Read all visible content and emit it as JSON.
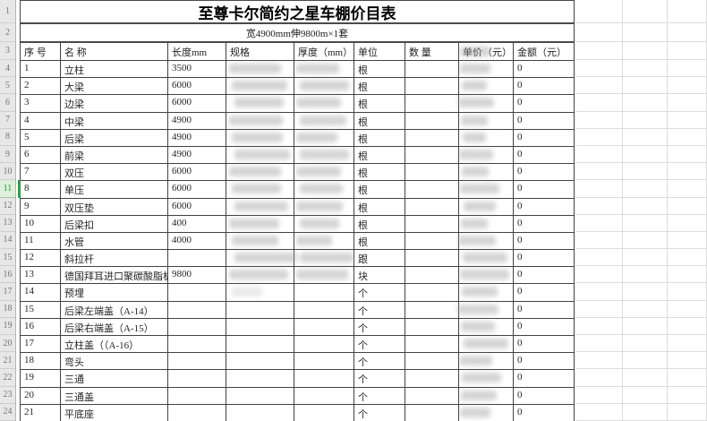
{
  "accent_colors": {
    "selection_green": "#2f9e44",
    "grid_gray": "#dcdcdc",
    "table_border": "#424242"
  },
  "row_headers": {
    "numbers": [
      "1",
      "2",
      "3",
      "4",
      "5",
      "6",
      "7",
      "8",
      "9",
      "10",
      "11",
      "12",
      "13",
      "14",
      "15",
      "16",
      "17",
      "18",
      "19",
      "20",
      "21",
      "22",
      "23",
      "24"
    ],
    "selected": "11"
  },
  "table": {
    "title": "至尊卡尔简约之星车棚价目表",
    "subtitle": "宽4900mm伸9800m×1套",
    "columns": [
      {
        "key": "no",
        "label": "序 号"
      },
      {
        "key": "name",
        "label": "名 称"
      },
      {
        "key": "length",
        "label": "长度mm"
      },
      {
        "key": "spec",
        "label": "规格"
      },
      {
        "key": "thickness",
        "label": "厚度（mm）"
      },
      {
        "key": "unit",
        "label": "单位"
      },
      {
        "key": "qty",
        "label": "数 量"
      },
      {
        "key": "price",
        "label": "单价（元）"
      },
      {
        "key": "amount",
        "label": "金额（元）"
      }
    ],
    "price_header_redacted": true,
    "rows": [
      {
        "no": "1",
        "name": "立柱",
        "length": "3500",
        "spec": "",
        "thickness": "",
        "unit": "根",
        "qty": "",
        "price": "",
        "amount": "0",
        "spec_redacted": true,
        "thickness_redacted": true,
        "price_redacted": true
      },
      {
        "no": "2",
        "name": "大梁",
        "length": "6000",
        "spec": "",
        "thickness": "",
        "unit": "根",
        "qty": "",
        "price": "",
        "amount": "0",
        "spec_redacted": true,
        "thickness_redacted": true,
        "price_redacted": true
      },
      {
        "no": "3",
        "name": "边梁",
        "length": "6000",
        "spec": "",
        "thickness": "",
        "unit": "根",
        "qty": "",
        "price": "",
        "amount": "0",
        "spec_redacted": true,
        "thickness_redacted": true,
        "price_redacted": true
      },
      {
        "no": "4",
        "name": "中梁",
        "length": "4900",
        "spec": "",
        "thickness": "",
        "unit": "根",
        "qty": "",
        "price": "",
        "amount": "0",
        "spec_redacted": true,
        "thickness_redacted": true,
        "price_redacted": true
      },
      {
        "no": "5",
        "name": "后梁",
        "length": "4900",
        "spec": "",
        "thickness": "",
        "unit": "根",
        "qty": "",
        "price": "",
        "amount": "0",
        "spec_redacted": true,
        "thickness_redacted": true,
        "price_redacted": true
      },
      {
        "no": "6",
        "name": "前梁",
        "length": "4900",
        "spec": "",
        "thickness": "",
        "unit": "根",
        "qty": "",
        "price": "",
        "amount": "0",
        "spec_redacted": true,
        "thickness_redacted": true,
        "price_redacted": true
      },
      {
        "no": "7",
        "name": "双压",
        "length": "6000",
        "spec": "",
        "thickness": "",
        "unit": "根",
        "qty": "",
        "price": "",
        "amount": "0",
        "spec_redacted": true,
        "thickness_redacted": true,
        "price_redacted": true
      },
      {
        "no": "8",
        "name": "单压",
        "length": "6000",
        "spec": "",
        "thickness": "",
        "unit": "根",
        "qty": "",
        "price": "",
        "amount": "0",
        "spec_redacted": true,
        "thickness_redacted": true,
        "price_redacted": true
      },
      {
        "no": "9",
        "name": "双压垫",
        "length": "6000",
        "spec": "",
        "thickness": "",
        "unit": "根",
        "qty": "",
        "price": "",
        "amount": "0",
        "spec_redacted": true,
        "thickness_redacted": true,
        "price_redacted": true
      },
      {
        "no": "10",
        "name": "后梁扣",
        "length": "400",
        "spec": "",
        "thickness": "",
        "unit": "根",
        "qty": "",
        "price": "",
        "amount": "0",
        "spec_redacted": true,
        "thickness_redacted": true,
        "price_redacted": true
      },
      {
        "no": "11",
        "name": "水管",
        "length": "4000",
        "spec": "",
        "thickness": "",
        "unit": "根",
        "qty": "",
        "price": "",
        "amount": "0",
        "spec_redacted": true,
        "thickness_redacted": true,
        "price_redacted": true
      },
      {
        "no": "12",
        "name": "斜拉杆",
        "length": "",
        "spec": "",
        "thickness": "",
        "unit": "跟",
        "qty": "",
        "price": "",
        "amount": "0",
        "spec_redacted": true,
        "thickness_redacted": true,
        "price_redacted": true
      },
      {
        "no": "13",
        "name": "德国拜耳进口聚碳酸脂板",
        "length": "9800",
        "spec": "",
        "thickness": "",
        "unit": "块",
        "qty": "",
        "price": "",
        "amount": "0",
        "spec_redacted": true,
        "thickness_redacted": true,
        "price_redacted": true
      },
      {
        "no": "14",
        "name": "预埋",
        "length": "",
        "spec": "",
        "thickness": "",
        "unit": "个",
        "qty": "",
        "price": "",
        "amount": "0",
        "spec_redacted": true,
        "spec_faint": true,
        "thickness_redacted": false,
        "price_redacted": true
      },
      {
        "no": "15",
        "name": "后梁左端盖（A-14）",
        "length": "",
        "spec": "",
        "thickness": "",
        "unit": "个",
        "qty": "",
        "price": "",
        "amount": "0",
        "spec_redacted": false,
        "thickness_redacted": false,
        "price_redacted": true
      },
      {
        "no": "16",
        "name": "后梁右端盖（A-15）",
        "length": "",
        "spec": "",
        "thickness": "",
        "unit": "个",
        "qty": "",
        "price": "",
        "amount": "0",
        "spec_redacted": false,
        "thickness_redacted": false,
        "price_redacted": true
      },
      {
        "no": "17",
        "name": "立柱盖（（A-16）",
        "length": "",
        "spec": "",
        "thickness": "",
        "unit": "个",
        "qty": "",
        "price": "",
        "amount": "0",
        "spec_redacted": false,
        "thickness_redacted": false,
        "price_redacted": true
      },
      {
        "no": "18",
        "name": "弯头",
        "length": "",
        "spec": "",
        "thickness": "",
        "unit": "个",
        "qty": "",
        "price": "",
        "amount": "0",
        "spec_redacted": false,
        "thickness_redacted": false,
        "price_redacted": true
      },
      {
        "no": "19",
        "name": "三通",
        "length": "",
        "spec": "",
        "thickness": "",
        "unit": "个",
        "qty": "",
        "price": "",
        "amount": "0",
        "spec_redacted": false,
        "thickness_redacted": false,
        "price_redacted": true
      },
      {
        "no": "20",
        "name": "三通盖",
        "length": "",
        "spec": "",
        "thickness": "",
        "unit": "个",
        "qty": "",
        "price": "",
        "amount": "0",
        "spec_redacted": false,
        "thickness_redacted": false,
        "price_redacted": true
      },
      {
        "no": "21",
        "name": "平底座",
        "length": "",
        "spec": "",
        "thickness": "",
        "unit": "个",
        "qty": "",
        "price": "",
        "amount": "0",
        "spec_redacted": false,
        "thickness_redacted": false,
        "price_redacted": true
      }
    ]
  }
}
